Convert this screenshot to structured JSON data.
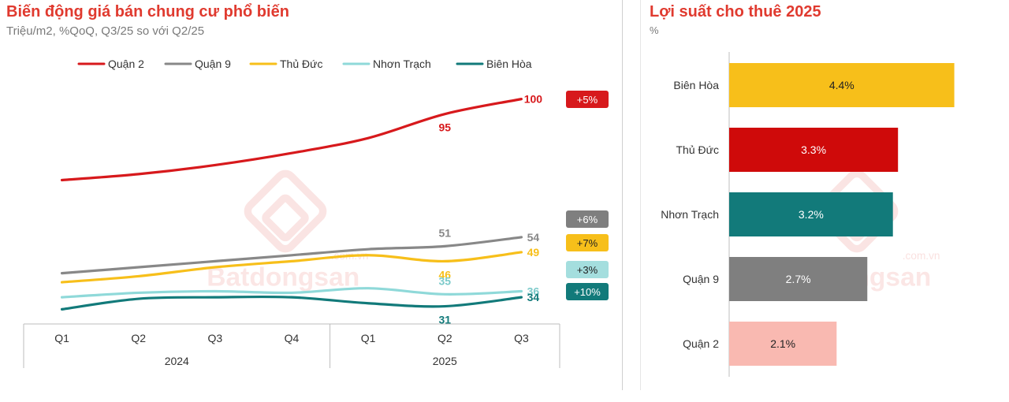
{
  "left_panel": {
    "title": "Biến động giá bán chung cư phổ biến",
    "subtitle": "Triệu/m2, %QoQ, Q3/25 so với Q2/25"
  },
  "right_panel": {
    "title": "Lợi suất cho thuê 2025",
    "subtitle": "%"
  },
  "watermark": {
    "brand": "Batdongsan",
    "domain": ".com.vn"
  },
  "colors": {
    "quan2": "#d7191c",
    "quan9": "#888888",
    "thuduc": "#f7bf1a",
    "nhontrach": "#8fd9d9",
    "bienhoa": "#127a7a",
    "quan2_bar": "#f9b9b1"
  },
  "chart_data": [
    {
      "type": "line",
      "title": "Biến động giá bán chung cư phổ biến",
      "ylabel": "Triệu/m2",
      "x": [
        "Q1",
        "Q2",
        "Q3",
        "Q4",
        "Q1",
        "Q2",
        "Q3"
      ],
      "year_groups": [
        {
          "label": "2024",
          "quarters": 4
        },
        {
          "label": "2025",
          "quarters": 3
        }
      ],
      "ylim": [
        28,
        102
      ],
      "grid": false,
      "legend": "top",
      "series": [
        {
          "name": "Quận 2",
          "color": "#d7191c",
          "values": [
            73,
            75,
            78,
            82,
            87,
            95,
            100
          ],
          "labels": [
            {
              "index": 5,
              "text": "95",
              "pos": "below"
            },
            {
              "index": 6,
              "text": "100",
              "pos": "right"
            }
          ],
          "change": "+5%",
          "badge_color": "#d7191c"
        },
        {
          "name": "Quận 9",
          "color": "#888888",
          "values": [
            42,
            44,
            46,
            48,
            50,
            51,
            54
          ],
          "labels": [
            {
              "index": 5,
              "text": "51",
              "pos": "above"
            },
            {
              "index": 6,
              "text": "54",
              "pos": "right"
            }
          ],
          "change": "+6%",
          "badge_color": "#7f7f7f"
        },
        {
          "name": "Thủ Đức",
          "color": "#f7bf1a",
          "values": [
            39,
            41,
            44,
            46,
            48,
            46,
            49
          ],
          "labels": [
            {
              "index": 5,
              "text": "46",
              "pos": "below"
            },
            {
              "index": 6,
              "text": "49",
              "pos": "right"
            }
          ],
          "change": "+7%",
          "badge_color": "#f7bf1a"
        },
        {
          "name": "Nhơn Trạch",
          "color": "#8fd9d9",
          "values": [
            34,
            35.5,
            36,
            35.5,
            37,
            35,
            36
          ],
          "labels": [
            {
              "index": 5,
              "text": "35",
              "pos": "above"
            },
            {
              "index": 6,
              "text": "36",
              "pos": "right"
            }
          ],
          "change": "+3%",
          "badge_color": "#a4dede"
        },
        {
          "name": "Biên Hòa",
          "color": "#127a7a",
          "values": [
            30,
            33.5,
            34,
            34,
            32,
            31,
            34
          ],
          "labels": [
            {
              "index": 5,
              "text": "31",
              "pos": "below"
            },
            {
              "index": 6,
              "text": "34",
              "pos": "right"
            }
          ],
          "change": "+10%",
          "badge_color": "#127a7a"
        }
      ]
    },
    {
      "type": "bar",
      "orientation": "horizontal",
      "title": "Lợi suất cho thuê 2025",
      "ylabel": "%",
      "xlim": [
        0,
        5.5
      ],
      "categories": [
        "Biên Hòa",
        "Thủ Đức",
        "Nhơn Trạch",
        "Quận 9",
        "Quận 2"
      ],
      "values": [
        4.4,
        3.3,
        3.2,
        2.7,
        2.1
      ],
      "value_labels": [
        "4.4%",
        "3.3%",
        "3.2%",
        "2.7%",
        "2.1%"
      ],
      "bar_colors": [
        "#f7bf1a",
        "#cf0a0a",
        "#127a7a",
        "#7f7f7f",
        "#f9b9b1"
      ],
      "label_colors": [
        "#222222",
        "#ffffff",
        "#ffffff",
        "#ffffff",
        "#222222"
      ]
    }
  ]
}
